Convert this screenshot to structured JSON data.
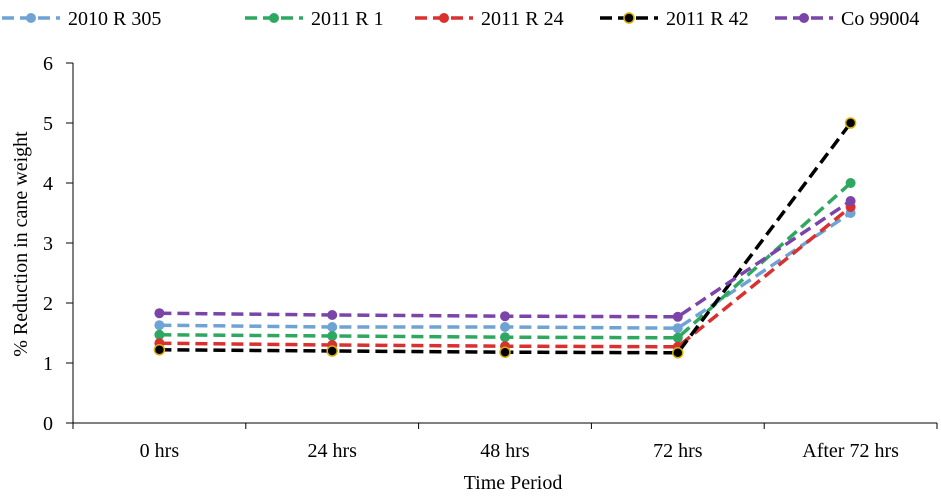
{
  "chart_data": {
    "type": "line",
    "title": "",
    "xlabel": "Time Period",
    "ylabel": "% Reduction in cane weight",
    "categories": [
      "0 hrs",
      "24 hrs",
      "48 hrs",
      "72 hrs",
      "After 72 hrs"
    ],
    "ylim": [
      0,
      6
    ],
    "yticks": [
      "0",
      "1",
      "2",
      "3",
      "4",
      "5",
      "6"
    ],
    "grid": false,
    "legend_position": "top",
    "series": [
      {
        "name": "2010 R 305",
        "color": "#6fa3d4",
        "values": [
          1.63,
          1.6,
          1.6,
          1.58,
          3.5
        ]
      },
      {
        "name": "2011 R 1",
        "color": "#2ea860",
        "values": [
          1.47,
          1.45,
          1.43,
          1.42,
          4.0
        ]
      },
      {
        "name": "2011 R 24",
        "color": "#d93030",
        "values": [
          1.33,
          1.3,
          1.28,
          1.27,
          3.6
        ]
      },
      {
        "name": "2011 R 42",
        "color": "#000000",
        "values": [
          1.22,
          1.2,
          1.18,
          1.17,
          5.0
        ]
      },
      {
        "name": "Co 99004",
        "color": "#7b44a8",
        "values": [
          1.83,
          1.8,
          1.78,
          1.77,
          3.7
        ]
      }
    ]
  }
}
